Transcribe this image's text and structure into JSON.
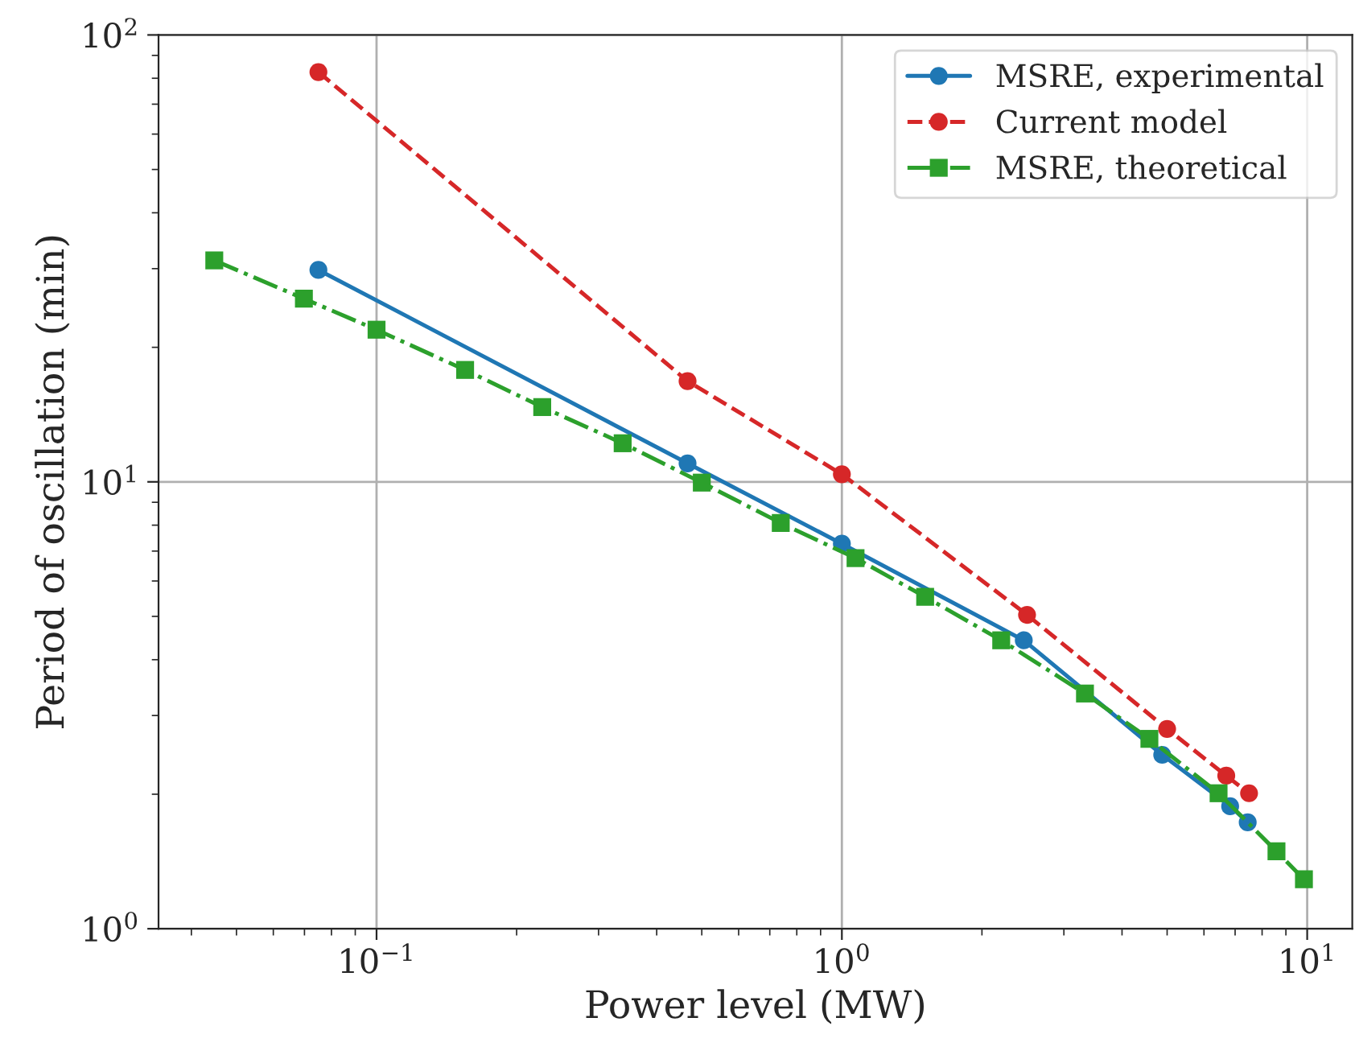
{
  "chart_data": {
    "type": "line",
    "xlabel": "Power level (MW)",
    "ylabel": "Period of oscillation (min)",
    "log": "xy",
    "grid": true,
    "legend": "top right",
    "xlim": [
      0.034,
      12.5
    ],
    "ylim": [
      1,
      100
    ],
    "xticks": [
      {
        "value": 0.1,
        "label": "10$^{−1}$"
      },
      {
        "value": 1,
        "label": "10$^{0}$"
      },
      {
        "value": 10,
        "label": "10$^{1}$"
      }
    ],
    "yticks": [
      {
        "value": 1,
        "label": "10$^{0}$"
      },
      {
        "value": 10,
        "label": "10$^{1}$"
      },
      {
        "value": 100,
        "label": "10$^{2}$"
      }
    ],
    "series": [
      {
        "name": "MSRE, experimental",
        "color": "#1f77b4",
        "marker": "circle",
        "line_style": "solid",
        "x": [
          0.075,
          0.466,
          1.0,
          2.46,
          4.88,
          6.83,
          7.45
        ],
        "values": [
          29.8,
          11.0,
          7.27,
          4.42,
          2.45,
          1.88,
          1.73
        ]
      },
      {
        "name": "Current model",
        "color": "#d62728",
        "marker": "circle",
        "line_style": "dashed",
        "x": [
          0.075,
          0.466,
          1.0,
          2.5,
          5.0,
          6.7,
          7.5
        ],
        "values": [
          82.6,
          16.8,
          10.4,
          5.04,
          2.8,
          2.2,
          2.01
        ]
      },
      {
        "name": "MSRE, theoretical",
        "color": "#2ca02c",
        "marker": "square",
        "line_style": "dashdot",
        "x": [
          0.0448,
          0.0698,
          0.1,
          0.155,
          0.227,
          0.338,
          0.5,
          0.739,
          1.07,
          1.51,
          2.2,
          3.33,
          4.58,
          6.45,
          8.59,
          9.84
        ],
        "values": [
          31.3,
          25.7,
          21.9,
          17.8,
          14.7,
          12.2,
          9.96,
          8.09,
          6.75,
          5.53,
          4.42,
          3.36,
          2.66,
          2.01,
          1.49,
          1.29
        ]
      }
    ]
  }
}
